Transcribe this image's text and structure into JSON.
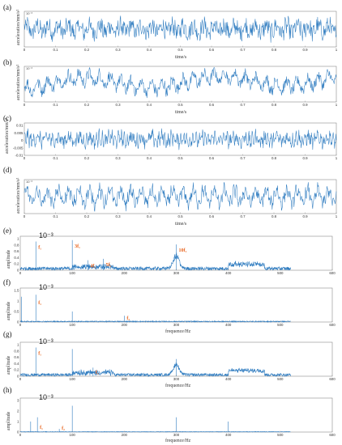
{
  "figure": {
    "panels": [
      {
        "label": "(a)",
        "exponent": "10⁻³",
        "ylabel": "acceleration/mm/s²",
        "xlabel": "time/s",
        "xticks": [
          "0",
          "0.1",
          "0.2",
          "0.3",
          "0.4",
          "0.5",
          "0.6",
          "0.7",
          "0.8",
          "0.9",
          "1"
        ]
      },
      {
        "label": "(b)",
        "exponent": "10⁻³",
        "ylabel": "acceleration/mm/s²",
        "xlabel": "time/s",
        "xticks": [
          "0",
          "0.1",
          "0.2",
          "0.3",
          "0.4",
          "0.5",
          "0.6",
          "0.7",
          "0.8",
          "0.9",
          "1"
        ]
      },
      {
        "label": "(c)",
        "exponent": "",
        "ylabel": "acceleration/mm/s²",
        "xlabel": "",
        "xticks": [
          "0",
          "0.1",
          "0.2",
          "0.3",
          "0.4",
          "0.5",
          "0.6",
          "0.7",
          "0.8",
          "0.9",
          "1"
        ],
        "yticks": [
          "0.01",
          "0.005",
          "0",
          "-0.005",
          "-0.01"
        ]
      },
      {
        "label": "(d)",
        "exponent": "10⁻³",
        "ylabel": "acceleration/mm/s²",
        "xlabel": "time/s",
        "xticks": [
          "0",
          "0.1",
          "0.2",
          "0.3",
          "0.4",
          "0.5",
          "0.6",
          "0.7",
          "0.8",
          "0.9",
          "1"
        ]
      },
      {
        "label": "(e)",
        "exponent": "10⁻³",
        "ylabel": "amplitude",
        "xlabel": "",
        "xticks": [
          "0",
          "100",
          "200",
          "300",
          "400",
          "500",
          "600"
        ],
        "yticks": [
          "1",
          "0.8",
          "0.6",
          "0.4",
          "0.2",
          "0"
        ],
        "annotations": [
          "f₁",
          "3f₁",
          "4f₁",
          "5f₁",
          "10f₁"
        ]
      },
      {
        "label": "(f)",
        "exponent": "10⁻³",
        "ylabel": "amplitude",
        "xlabel": "frequence/Hz",
        "xticks": [
          "0",
          "100",
          "200",
          "300",
          "400",
          "500",
          "600"
        ],
        "yticks": [
          "1.5",
          "1",
          "0.5",
          "0"
        ],
        "annotations": [
          "f₁",
          "f₂"
        ]
      },
      {
        "label": "(g)",
        "exponent": "10⁻³",
        "ylabel": "amplitude",
        "xlabel": "frequence/Hz",
        "xticks": [
          "0",
          "100",
          "200",
          "300",
          "400",
          "500",
          "600"
        ],
        "yticks": [
          "1",
          "0.8",
          "0.6",
          "0.4",
          "0.2",
          "0"
        ],
        "annotations": [
          "f₁",
          "f₂"
        ]
      },
      {
        "label": "(h)",
        "exponent": "10⁻³",
        "ylabel": "amplitude",
        "xlabel": "frequence/Hz",
        "xticks": [
          "0",
          "100",
          "200",
          "300",
          "400",
          "500",
          "600"
        ],
        "yticks": [
          "3",
          "2",
          "1",
          "0"
        ],
        "annotations": [
          "f₁",
          "f₂"
        ]
      }
    ]
  },
  "chart_data": [
    {
      "type": "line",
      "title": "(a)",
      "xlabel": "time/s",
      "ylabel": "acceleration/mm/s²",
      "xlim": [
        0,
        1
      ],
      "description_of_values": "broadband random vibration signal, roughly zero-mean"
    },
    {
      "type": "line",
      "title": "(b)",
      "xlabel": "time/s",
      "ylabel": "acceleration/mm/s²",
      "xlim": [
        0,
        1
      ]
    },
    {
      "type": "line",
      "title": "(c)",
      "xlabel": "",
      "ylabel": "acceleration/mm/s²",
      "xlim": [
        0,
        1
      ],
      "ylim": [
        -0.01,
        0.01
      ]
    },
    {
      "type": "line",
      "title": "(d)",
      "xlabel": "time/s",
      "ylabel": "acceleration/mm/s²",
      "xlim": [
        0,
        1
      ]
    },
    {
      "type": "line",
      "title": "(e)",
      "xlabel": "",
      "ylabel": "amplitude",
      "xlim": [
        0,
        600
      ],
      "ylim": [
        0,
        1.1
      ],
      "peaks": [
        {
          "x": 30,
          "y": 1.0,
          "label": "f₁"
        },
        {
          "x": 100,
          "y": 1.05,
          "label": "3f₁"
        },
        {
          "x": 130,
          "y": 0.35,
          "label": "4f₁"
        },
        {
          "x": 160,
          "y": 0.4,
          "label": "5f₁"
        },
        {
          "x": 300,
          "y": 0.9,
          "label": "10f₁"
        }
      ]
    },
    {
      "type": "line",
      "title": "(f)",
      "xlabel": "frequence/Hz",
      "ylabel": "amplitude",
      "xlim": [
        0,
        600
      ],
      "ylim": [
        0,
        1.5
      ],
      "peaks": [
        {
          "x": 2,
          "y": 1.2
        },
        {
          "x": 30,
          "y": 1.3,
          "label": "f₁"
        },
        {
          "x": 100,
          "y": 0.5
        },
        {
          "x": 200,
          "y": 0.3,
          "label": "f₂"
        }
      ]
    },
    {
      "type": "line",
      "title": "(g)",
      "xlabel": "frequence/Hz",
      "ylabel": "amplitude",
      "xlim": [
        0,
        600
      ],
      "ylim": [
        0,
        1.1
      ],
      "peaks": [
        {
          "x": 30,
          "y": 1.0,
          "label": "f₁"
        },
        {
          "x": 100,
          "y": 0.95
        },
        {
          "x": 140,
          "y": 0.3,
          "label": "f₂"
        },
        {
          "x": 300,
          "y": 0.6
        }
      ]
    },
    {
      "type": "line",
      "title": "(h)",
      "xlabel": "frequence/Hz",
      "ylabel": "amplitude",
      "xlim": [
        0,
        600
      ],
      "ylim": [
        0,
        3
      ],
      "peaks": [
        {
          "x": 20,
          "y": 1.0
        },
        {
          "x": 33,
          "y": 1.4,
          "label": "f₁"
        },
        {
          "x": 75,
          "y": 0.3,
          "label": "f₂"
        },
        {
          "x": 100,
          "y": 2.5
        },
        {
          "x": 300,
          "y": 1.4
        },
        {
          "x": 400,
          "y": 1.0
        }
      ]
    }
  ]
}
